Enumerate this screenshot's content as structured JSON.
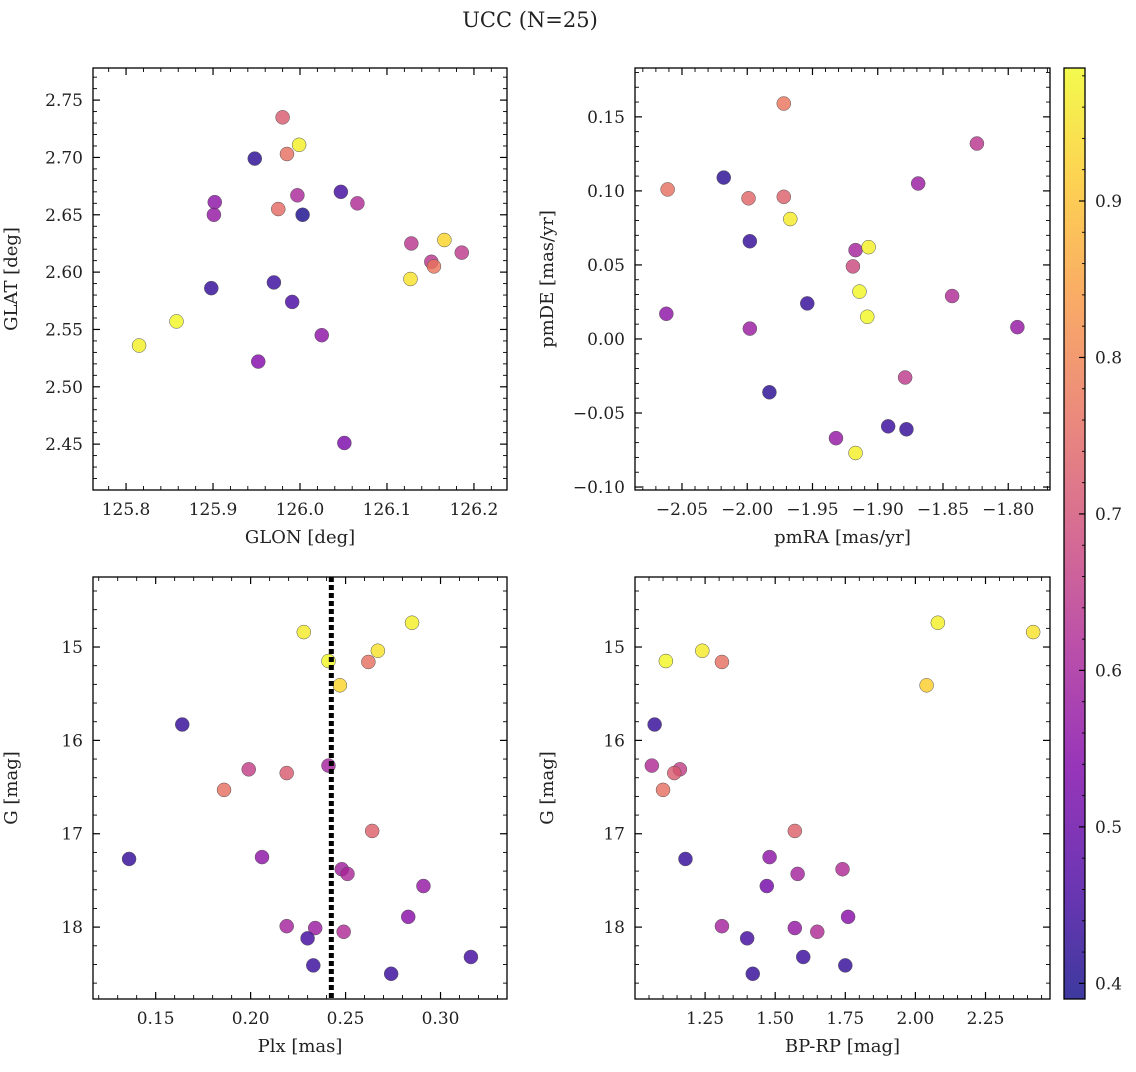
{
  "figure": {
    "title": "UCC (N=25)",
    "colorbar": {
      "min": 0.39,
      "max": 0.985,
      "ticks": [
        "0.4",
        "0.5",
        "0.6",
        "0.7",
        "0.8",
        "0.9"
      ],
      "colormap": "plasma"
    },
    "marker_edge_color": "#555555",
    "line_color": "#000000"
  },
  "chart_data": [
    {
      "type": "scatter",
      "id": "glon-glat",
      "xlabel": "GLON [deg]",
      "ylabel": "GLAT [deg]",
      "xlim": [
        125.762,
        126.238
      ],
      "ylim": [
        2.41,
        2.778
      ],
      "invert_y": false,
      "xticks": [
        125.8,
        125.9,
        126.0,
        126.1,
        126.2
      ],
      "xtick_labels": [
        "125.8",
        "125.9",
        "126.0",
        "126.1",
        "126.2"
      ],
      "yticks": [
        2.45,
        2.5,
        2.55,
        2.6,
        2.65,
        2.7,
        2.75
      ],
      "ytick_labels": [
        "2.45",
        "2.50",
        "2.55",
        "2.60",
        "2.65",
        "2.70",
        "2.75"
      ],
      "points": [
        {
          "x": 125.948,
          "y": 2.699,
          "c": 0.42
        },
        {
          "x": 125.98,
          "y": 2.735,
          "c": 0.72
        },
        {
          "x": 125.999,
          "y": 2.711,
          "c": 0.97
        },
        {
          "x": 125.985,
          "y": 2.703,
          "c": 0.76
        },
        {
          "x": 125.902,
          "y": 2.661,
          "c": 0.56
        },
        {
          "x": 125.901,
          "y": 2.65,
          "c": 0.57
        },
        {
          "x": 125.997,
          "y": 2.667,
          "c": 0.61
        },
        {
          "x": 126.047,
          "y": 2.67,
          "c": 0.45
        },
        {
          "x": 126.066,
          "y": 2.66,
          "c": 0.62
        },
        {
          "x": 125.975,
          "y": 2.655,
          "c": 0.75
        },
        {
          "x": 126.003,
          "y": 2.65,
          "c": 0.4
        },
        {
          "x": 126.128,
          "y": 2.625,
          "c": 0.64
        },
        {
          "x": 126.166,
          "y": 2.628,
          "c": 0.93
        },
        {
          "x": 126.186,
          "y": 2.617,
          "c": 0.65
        },
        {
          "x": 126.151,
          "y": 2.609,
          "c": 0.64
        },
        {
          "x": 126.154,
          "y": 2.605,
          "c": 0.77
        },
        {
          "x": 126.127,
          "y": 2.594,
          "c": 0.95
        },
        {
          "x": 125.898,
          "y": 2.586,
          "c": 0.43
        },
        {
          "x": 125.97,
          "y": 2.591,
          "c": 0.44
        },
        {
          "x": 125.991,
          "y": 2.574,
          "c": 0.46
        },
        {
          "x": 125.858,
          "y": 2.557,
          "c": 0.98
        },
        {
          "x": 125.815,
          "y": 2.536,
          "c": 0.97
        },
        {
          "x": 126.025,
          "y": 2.545,
          "c": 0.56
        },
        {
          "x": 125.952,
          "y": 2.522,
          "c": 0.54
        },
        {
          "x": 126.051,
          "y": 2.451,
          "c": 0.53
        }
      ]
    },
    {
      "type": "scatter",
      "id": "pmra-pmde",
      "xlabel": "pmRA [mas/yr]",
      "ylabel": "pmDE [mas/yr]",
      "xlim": [
        -2.086,
        -1.768
      ],
      "ylim": [
        -0.102,
        0.183
      ],
      "invert_y": false,
      "xticks": [
        -2.05,
        -2.0,
        -1.95,
        -1.9,
        -1.85,
        -1.8
      ],
      "xtick_labels": [
        "−2.05",
        "−2.00",
        "−1.95",
        "−1.90",
        "−1.85",
        "−1.80"
      ],
      "yticks": [
        -0.1,
        -0.05,
        0.0,
        0.05,
        0.1,
        0.15
      ],
      "ytick_labels": [
        "−0.10",
        "−0.05",
        "0.00",
        "0.05",
        "0.10",
        "0.15"
      ],
      "points": [
        {
          "x": -1.972,
          "y": 0.159,
          "c": 0.77
        },
        {
          "x": -1.824,
          "y": 0.132,
          "c": 0.64
        },
        {
          "x": -2.018,
          "y": 0.109,
          "c": 0.42
        },
        {
          "x": -2.061,
          "y": 0.101,
          "c": 0.76
        },
        {
          "x": -1.999,
          "y": 0.095,
          "c": 0.74
        },
        {
          "x": -1.972,
          "y": 0.096,
          "c": 0.73
        },
        {
          "x": -1.869,
          "y": 0.105,
          "c": 0.58
        },
        {
          "x": -1.967,
          "y": 0.081,
          "c": 0.96
        },
        {
          "x": -1.998,
          "y": 0.066,
          "c": 0.43
        },
        {
          "x": -1.917,
          "y": 0.06,
          "c": 0.6
        },
        {
          "x": -1.907,
          "y": 0.062,
          "c": 0.97
        },
        {
          "x": -1.919,
          "y": 0.049,
          "c": 0.68
        },
        {
          "x": -1.914,
          "y": 0.032,
          "c": 0.98
        },
        {
          "x": -1.954,
          "y": 0.024,
          "c": 0.43
        },
        {
          "x": -1.843,
          "y": 0.029,
          "c": 0.62
        },
        {
          "x": -1.908,
          "y": 0.015,
          "c": 0.98
        },
        {
          "x": -2.062,
          "y": 0.017,
          "c": 0.56
        },
        {
          "x": -1.998,
          "y": 0.007,
          "c": 0.58
        },
        {
          "x": -1.793,
          "y": 0.008,
          "c": 0.57
        },
        {
          "x": -1.879,
          "y": -0.026,
          "c": 0.65
        },
        {
          "x": -1.983,
          "y": -0.036,
          "c": 0.42
        },
        {
          "x": -1.932,
          "y": -0.067,
          "c": 0.57
        },
        {
          "x": -1.892,
          "y": -0.059,
          "c": 0.44
        },
        {
          "x": -1.878,
          "y": -0.061,
          "c": 0.43
        },
        {
          "x": -1.917,
          "y": -0.077,
          "c": 0.97
        }
      ]
    },
    {
      "type": "scatter",
      "id": "plx-g",
      "xlabel": "Plx [mas]",
      "ylabel": "G [mag]",
      "xlim": [
        0.117,
        0.335
      ],
      "ylim": [
        14.25,
        18.77
      ],
      "invert_y": true,
      "xticks": [
        0.15,
        0.2,
        0.25,
        0.3
      ],
      "xtick_labels": [
        "0.15",
        "0.20",
        "0.25",
        "0.30"
      ],
      "yticks": [
        15,
        16,
        17,
        18
      ],
      "ytick_labels": [
        "15",
        "16",
        "17",
        "18"
      ],
      "vline": {
        "x": 0.2425,
        "style": "dotted"
      },
      "points": [
        {
          "x": 0.285,
          "y": 14.74,
          "c": 0.97
        },
        {
          "x": 0.228,
          "y": 14.84,
          "c": 0.96
        },
        {
          "x": 0.267,
          "y": 15.04,
          "c": 0.95
        },
        {
          "x": 0.241,
          "y": 15.15,
          "c": 0.98
        },
        {
          "x": 0.262,
          "y": 15.16,
          "c": 0.76
        },
        {
          "x": 0.247,
          "y": 15.41,
          "c": 0.93
        },
        {
          "x": 0.164,
          "y": 15.83,
          "c": 0.43
        },
        {
          "x": 0.241,
          "y": 16.27,
          "c": 0.6
        },
        {
          "x": 0.199,
          "y": 16.31,
          "c": 0.66
        },
        {
          "x": 0.219,
          "y": 16.35,
          "c": 0.72
        },
        {
          "x": 0.186,
          "y": 16.53,
          "c": 0.76
        },
        {
          "x": 0.264,
          "y": 16.97,
          "c": 0.73
        },
        {
          "x": 0.136,
          "y": 17.27,
          "c": 0.43
        },
        {
          "x": 0.206,
          "y": 17.25,
          "c": 0.56
        },
        {
          "x": 0.248,
          "y": 17.38,
          "c": 0.59
        },
        {
          "x": 0.251,
          "y": 17.43,
          "c": 0.61
        },
        {
          "x": 0.291,
          "y": 17.56,
          "c": 0.57
        },
        {
          "x": 0.283,
          "y": 17.89,
          "c": 0.55
        },
        {
          "x": 0.219,
          "y": 17.99,
          "c": 0.6
        },
        {
          "x": 0.234,
          "y": 18.01,
          "c": 0.58
        },
        {
          "x": 0.249,
          "y": 18.05,
          "c": 0.62
        },
        {
          "x": 0.23,
          "y": 18.12,
          "c": 0.45
        },
        {
          "x": 0.316,
          "y": 18.32,
          "c": 0.45
        },
        {
          "x": 0.233,
          "y": 18.41,
          "c": 0.44
        },
        {
          "x": 0.274,
          "y": 18.5,
          "c": 0.44
        }
      ]
    },
    {
      "type": "scatter",
      "id": "bprp-g",
      "xlabel": "BP-RP [mag]",
      "ylabel": "G [mag]",
      "xlim": [
        1.0,
        2.48
      ],
      "ylim": [
        14.25,
        18.77
      ],
      "invert_y": true,
      "xticks": [
        1.25,
        1.5,
        1.75,
        2.0,
        2.25
      ],
      "xtick_labels": [
        "1.25",
        "1.50",
        "1.75",
        "2.00",
        "2.25"
      ],
      "yticks": [
        15,
        16,
        17,
        18
      ],
      "ytick_labels": [
        "15",
        "16",
        "17",
        "18"
      ],
      "points": [
        {
          "x": 2.08,
          "y": 14.74,
          "c": 0.97
        },
        {
          "x": 2.42,
          "y": 14.84,
          "c": 0.95
        },
        {
          "x": 1.24,
          "y": 15.04,
          "c": 0.96
        },
        {
          "x": 1.11,
          "y": 15.15,
          "c": 0.98
        },
        {
          "x": 1.31,
          "y": 15.16,
          "c": 0.76
        },
        {
          "x": 2.04,
          "y": 15.41,
          "c": 0.92
        },
        {
          "x": 1.07,
          "y": 15.83,
          "c": 0.43
        },
        {
          "x": 1.06,
          "y": 16.27,
          "c": 0.62
        },
        {
          "x": 1.16,
          "y": 16.31,
          "c": 0.66
        },
        {
          "x": 1.14,
          "y": 16.35,
          "c": 0.72
        },
        {
          "x": 1.1,
          "y": 16.53,
          "c": 0.76
        },
        {
          "x": 1.57,
          "y": 16.97,
          "c": 0.73
        },
        {
          "x": 1.18,
          "y": 17.27,
          "c": 0.43
        },
        {
          "x": 1.48,
          "y": 17.25,
          "c": 0.56
        },
        {
          "x": 1.74,
          "y": 17.38,
          "c": 0.62
        },
        {
          "x": 1.58,
          "y": 17.43,
          "c": 0.6
        },
        {
          "x": 1.47,
          "y": 17.56,
          "c": 0.52
        },
        {
          "x": 1.76,
          "y": 17.89,
          "c": 0.55
        },
        {
          "x": 1.31,
          "y": 17.99,
          "c": 0.6
        },
        {
          "x": 1.57,
          "y": 18.01,
          "c": 0.57
        },
        {
          "x": 1.65,
          "y": 18.05,
          "c": 0.62
        },
        {
          "x": 1.4,
          "y": 18.12,
          "c": 0.45
        },
        {
          "x": 1.6,
          "y": 18.32,
          "c": 0.44
        },
        {
          "x": 1.75,
          "y": 18.41,
          "c": 0.43
        },
        {
          "x": 1.42,
          "y": 18.5,
          "c": 0.43
        }
      ]
    }
  ]
}
